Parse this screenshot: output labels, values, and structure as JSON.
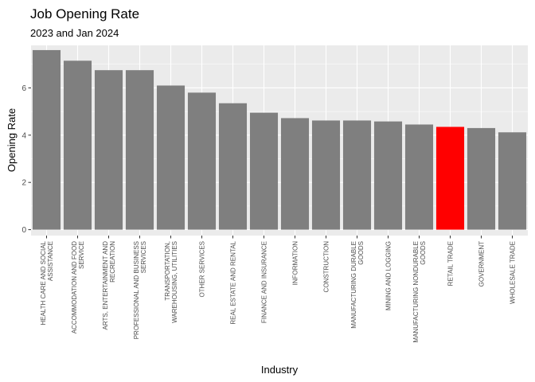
{
  "chart_data": {
    "type": "bar",
    "title": "Job Opening Rate",
    "subtitle": "2023 and Jan 2024",
    "xlabel": "Industry",
    "ylabel": "Opening Rate",
    "ylim": [
      -0.25,
      7.8
    ],
    "yticks": [
      0,
      2,
      4,
      6
    ],
    "grid": true,
    "categories": [
      [
        "HEALTH CARE AND SOCIAL",
        "ASSISTANCE"
      ],
      [
        "ACCOMMODATION AND FOOD",
        "SERVICE"
      ],
      [
        "ARTS, ENTERTAINMENT AND",
        "RECREATION"
      ],
      [
        "PROFESSIONAL AND BUSINESS",
        "SERVICES"
      ],
      [
        "TRANSPORTATION,",
        "WAREHOUSING, UTILITIES"
      ],
      [
        "OTHER SERVICES"
      ],
      [
        "REAL ESTATE AND RENTAL"
      ],
      [
        "FINANCE AND INSURANCE"
      ],
      [
        "INFORMATION"
      ],
      [
        "CONSTRUCTION"
      ],
      [
        "MANUFACTURING DURABLE",
        "GOODS"
      ],
      [
        "MINING AND LOGGING"
      ],
      [
        "MANUFACTURING NONDURABLE",
        "GOODS"
      ],
      [
        "RETAIL TRADE"
      ],
      [
        "GOVERNMENT"
      ],
      [
        "WHOLESALE TRADE"
      ]
    ],
    "values": [
      7.6,
      7.15,
      6.75,
      6.75,
      6.1,
      5.8,
      5.35,
      4.95,
      4.72,
      4.62,
      4.62,
      4.58,
      4.45,
      4.35,
      4.3,
      4.12
    ],
    "colors": [
      "#7f7f7f",
      "#7f7f7f",
      "#7f7f7f",
      "#7f7f7f",
      "#7f7f7f",
      "#7f7f7f",
      "#7f7f7f",
      "#7f7f7f",
      "#7f7f7f",
      "#7f7f7f",
      "#7f7f7f",
      "#7f7f7f",
      "#7f7f7f",
      "#ff0000",
      "#7f7f7f",
      "#7f7f7f"
    ],
    "panel_color": "#ebebeb",
    "grid_color": "#ffffff"
  }
}
